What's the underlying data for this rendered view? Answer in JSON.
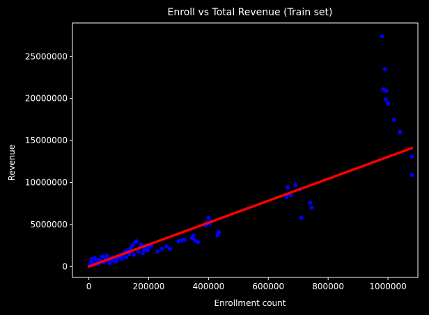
{
  "chart_data": {
    "type": "scatter",
    "title": "Enroll vs Total Revenue (Train set)",
    "xlabel": "Enrollment count",
    "ylabel": "Revenue",
    "xlim": [
      -55000,
      1100000
    ],
    "ylim": [
      -1300000,
      29000000
    ],
    "xticks": [
      0,
      200000,
      400000,
      600000,
      800000,
      1000000
    ],
    "xtick_labels": [
      "0",
      "200000",
      "400000",
      "600000",
      "800000",
      "1000000"
    ],
    "yticks": [
      0,
      5000000,
      10000000,
      15000000,
      20000000,
      25000000
    ],
    "ytick_labels": [
      "0",
      "5000000",
      "10000000",
      "15000000",
      "20000000",
      "25000000"
    ],
    "grid": false,
    "background": "#000000",
    "foreground": "#ffffff",
    "series": [
      {
        "kind": "points",
        "color": "#0000ff",
        "points": [
          [
            2000,
            100000
          ],
          [
            5000,
            300000
          ],
          [
            8000,
            600000
          ],
          [
            10000,
            900000
          ],
          [
            15000,
            400000
          ],
          [
            20000,
            1000000
          ],
          [
            25000,
            700000
          ],
          [
            30000,
            300000
          ],
          [
            35000,
            800000
          ],
          [
            40000,
            600000
          ],
          [
            45000,
            1200000
          ],
          [
            50000,
            500000
          ],
          [
            55000,
            1000000
          ],
          [
            60000,
            1300000
          ],
          [
            65000,
            900000
          ],
          [
            70000,
            400000
          ],
          [
            75000,
            700000
          ],
          [
            80000,
            1100000
          ],
          [
            85000,
            800000
          ],
          [
            90000,
            600000
          ],
          [
            95000,
            900000
          ],
          [
            100000,
            1200000
          ],
          [
            105000,
            1400000
          ],
          [
            110000,
            900000
          ],
          [
            115000,
            1300000
          ],
          [
            120000,
            1700000
          ],
          [
            125000,
            1100000
          ],
          [
            130000,
            1900000
          ],
          [
            135000,
            1500000
          ],
          [
            140000,
            2100000
          ],
          [
            145000,
            2500000
          ],
          [
            150000,
            1400000
          ],
          [
            155000,
            2900000
          ],
          [
            160000,
            3000000
          ],
          [
            165000,
            1800000
          ],
          [
            170000,
            2300000
          ],
          [
            175000,
            2600000
          ],
          [
            180000,
            1600000
          ],
          [
            185000,
            2000000
          ],
          [
            190000,
            2400000
          ],
          [
            195000,
            1900000
          ],
          [
            200000,
            2200000
          ],
          [
            210000,
            2500000
          ],
          [
            230000,
            1800000
          ],
          [
            245000,
            2100000
          ],
          [
            260000,
            2400000
          ],
          [
            270000,
            2100000
          ],
          [
            300000,
            3000000
          ],
          [
            310000,
            3100000
          ],
          [
            320000,
            3200000
          ],
          [
            345000,
            3400000
          ],
          [
            350000,
            3700000
          ],
          [
            355000,
            3100000
          ],
          [
            365000,
            2900000
          ],
          [
            390000,
            4900000
          ],
          [
            395000,
            5200000
          ],
          [
            400000,
            5800000
          ],
          [
            405000,
            5100000
          ],
          [
            410000,
            5400000
          ],
          [
            430000,
            3700000
          ],
          [
            435000,
            4100000
          ],
          [
            660000,
            8300000
          ],
          [
            665000,
            9400000
          ],
          [
            675000,
            8500000
          ],
          [
            690000,
            9700000
          ],
          [
            705000,
            9200000
          ],
          [
            710000,
            5800000
          ],
          [
            740000,
            7600000
          ],
          [
            745000,
            7000000
          ],
          [
            980000,
            27400000
          ],
          [
            985000,
            21100000
          ],
          [
            990000,
            23500000
          ],
          [
            993000,
            19900000
          ],
          [
            995000,
            20900000
          ],
          [
            1000000,
            19400000
          ],
          [
            1020000,
            17500000
          ],
          [
            1040000,
            16000000
          ],
          [
            1080000,
            13100000
          ],
          [
            1080000,
            10900000
          ]
        ]
      },
      {
        "kind": "fit-line",
        "color": "#ff0000",
        "points": [
          [
            0,
            0
          ],
          [
            1080000,
            14100000
          ]
        ]
      }
    ]
  }
}
